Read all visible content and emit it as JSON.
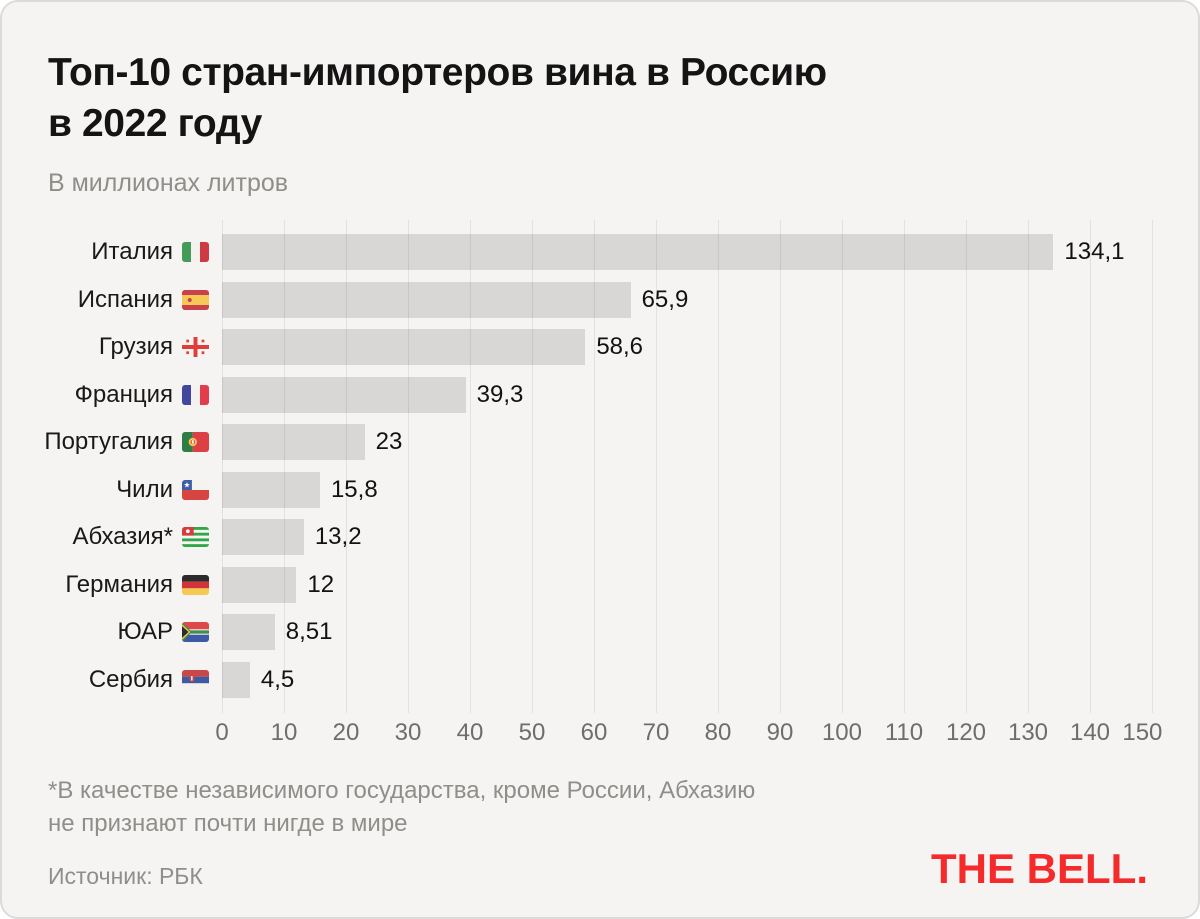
{
  "header": {
    "title_line1": "Топ-10 стран-импортеров вина в Россию",
    "title_line2": "в 2022 году",
    "units": "В миллионах литров"
  },
  "chart_data": {
    "type": "bar",
    "orientation": "horizontal",
    "title": "Топ-10 стран-импортеров вина в Россию в 2022 году",
    "units_label": "В миллионах литров",
    "xlim": [
      0,
      150
    ],
    "tick_step": 10,
    "ticks": [
      "0",
      "10",
      "20",
      "30",
      "40",
      "50",
      "60",
      "70",
      "80",
      "90",
      "100",
      "110",
      "120",
      "130",
      "140",
      "150"
    ],
    "grid": true,
    "bar_color": "#d8d7d5",
    "rows": [
      {
        "category": "Италия",
        "value": 134.1,
        "value_label": "134,1",
        "flag": "italy-flag-icon"
      },
      {
        "category": "Испания",
        "value": 65.9,
        "value_label": "65,9",
        "flag": "spain-flag-icon"
      },
      {
        "category": "Грузия",
        "value": 58.6,
        "value_label": "58,6",
        "flag": "georgia-flag-icon"
      },
      {
        "category": "Франция",
        "value": 39.3,
        "value_label": "39,3",
        "flag": "france-flag-icon"
      },
      {
        "category": "Португалия",
        "value": 23,
        "value_label": "23",
        "flag": "portugal-flag-icon"
      },
      {
        "category": "Чили",
        "value": 15.8,
        "value_label": "15,8",
        "flag": "chile-flag-icon"
      },
      {
        "category": "Абхазия*",
        "value": 13.2,
        "value_label": "13,2",
        "flag": "abkhazia-flag-icon"
      },
      {
        "category": "Германия",
        "value": 12,
        "value_label": "12",
        "flag": "germany-flag-icon"
      },
      {
        "category": "ЮАР",
        "value": 8.51,
        "value_label": "8,51",
        "flag": "south-africa-flag-icon"
      },
      {
        "category": "Сербия",
        "value": 4.5,
        "value_label": "4,5",
        "flag": "serbia-flag-icon"
      }
    ]
  },
  "footnote": "*В качестве независимого государства, кроме России, Абхазию\nне признают почти нигде в мире",
  "source": "Источник: РБК",
  "logo": "THE BELL.",
  "colors": {
    "background": "#f5f4f2",
    "bar": "#d8d7d5",
    "accent_red": "#f42a2b",
    "muted_text": "#8f8e8b",
    "tick_text": "#6d6d6d",
    "title_text": "#141414"
  }
}
